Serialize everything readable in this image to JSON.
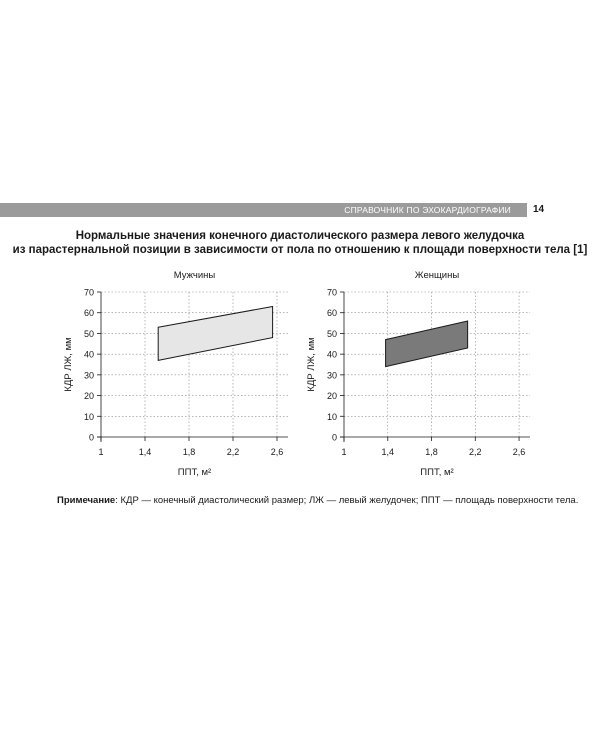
{
  "header": {
    "running_title": "СПРАВОЧНИК ПО ЭХОКАРДИОГРАФИИ",
    "page_number": "14"
  },
  "figure": {
    "title_line1": "Нормальные значения конечного диастолического размера левого желудочка",
    "title_line2": "из парастернальной позиции в зависимости от пола по отношению к площади поверхности тела [1]"
  },
  "chart_data": [
    {
      "type": "area",
      "title": "Мужчины",
      "xlabel": "ППТ, м²",
      "ylabel": "КДР ЛЖ, мм",
      "xlim": [
        1,
        2.7
      ],
      "ylim": [
        0,
        70
      ],
      "xticks": [
        "1",
        "1,4",
        "1,8",
        "2,2",
        "2,6"
      ],
      "yticks": [
        "0",
        "10",
        "20",
        "30",
        "40",
        "50",
        "60",
        "70"
      ],
      "grid": true,
      "fill": "#e6e6e6",
      "series": [
        {
          "x": [
            1.52,
            2.56
          ],
          "upper": [
            53,
            63
          ],
          "lower": [
            37,
            48
          ]
        }
      ]
    },
    {
      "type": "area",
      "title": "Женщины",
      "xlabel": "ППТ, м²",
      "ylabel": "КДР ЛЖ, мм",
      "xlim": [
        1,
        2.7
      ],
      "ylim": [
        0,
        70
      ],
      "xticks": [
        "1",
        "1,4",
        "1,8",
        "2,2",
        "2,6"
      ],
      "yticks": [
        "0",
        "10",
        "20",
        "30",
        "40",
        "50",
        "60",
        "70"
      ],
      "grid": true,
      "fill": "#7a7a7a",
      "series": [
        {
          "x": [
            1.38,
            2.13
          ],
          "upper": [
            47,
            56
          ],
          "lower": [
            34,
            43
          ]
        }
      ]
    }
  ],
  "note": {
    "label": "Примечание",
    "text": ": КДР — конечный диастолический размер; ЛЖ — левый желудочек; ППТ — площадь поверхности тела."
  }
}
